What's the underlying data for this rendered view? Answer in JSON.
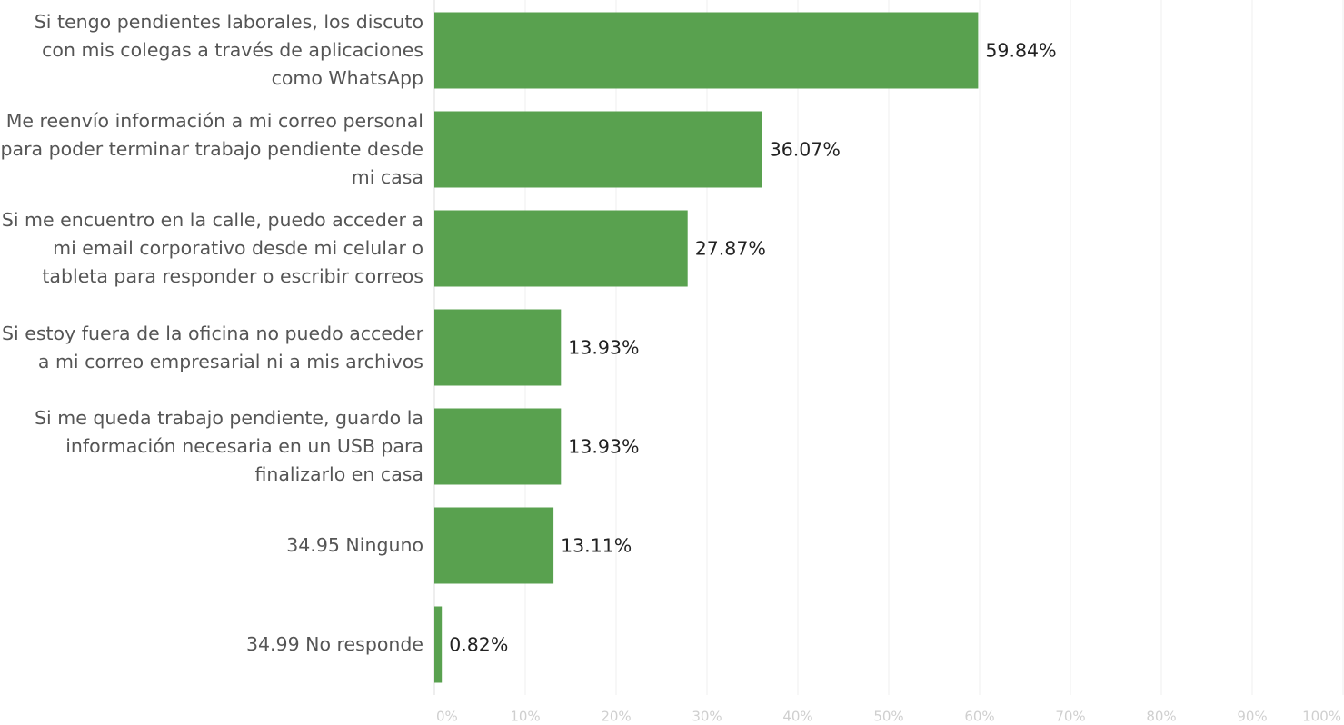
{
  "chart_data": {
    "type": "bar",
    "orientation": "horizontal",
    "categories": [
      "Si tengo pendientes laborales, los discuto con mis colegas a través de aplicaciones como WhatsApp",
      "Me reenvío información a mi correo personal para poder terminar trabajo pendiente desde mi casa",
      "Si me encuentro en la calle, puedo acceder a mi email corporativo desde mi celular o tableta para responder o escribir correos",
      "Si estoy fuera de la oficina no puedo acceder a mi correo empresarial ni a mis archivos",
      "Si me queda trabajo pendiente, guardo la información necesaria en un USB para finalizarlo en casa",
      "34.95 Ninguno",
      "34.99 No responde"
    ],
    "values": [
      59.84,
      36.07,
      27.87,
      13.93,
      13.93,
      13.11,
      0.82
    ],
    "value_labels": [
      "59.84%",
      "36.07%",
      "27.87%",
      "13.93%",
      "13.93%",
      "13.11%",
      "0.82%"
    ],
    "color": "#59a14f",
    "xlim": [
      0,
      100
    ],
    "xticks": [
      {
        "value": 0,
        "label": "0%"
      },
      {
        "value": 10,
        "label": "10%"
      },
      {
        "value": 20,
        "label": "20%"
      },
      {
        "value": 30,
        "label": "30%"
      },
      {
        "value": 40,
        "label": "40%"
      },
      {
        "value": 50,
        "label": "50%"
      },
      {
        "value": 60,
        "label": "60%"
      },
      {
        "value": 70,
        "label": "70%"
      },
      {
        "value": 80,
        "label": "80%"
      },
      {
        "value": 90,
        "label": "90%"
      },
      {
        "value": 100,
        "label": "100%"
      }
    ],
    "grid": true
  }
}
